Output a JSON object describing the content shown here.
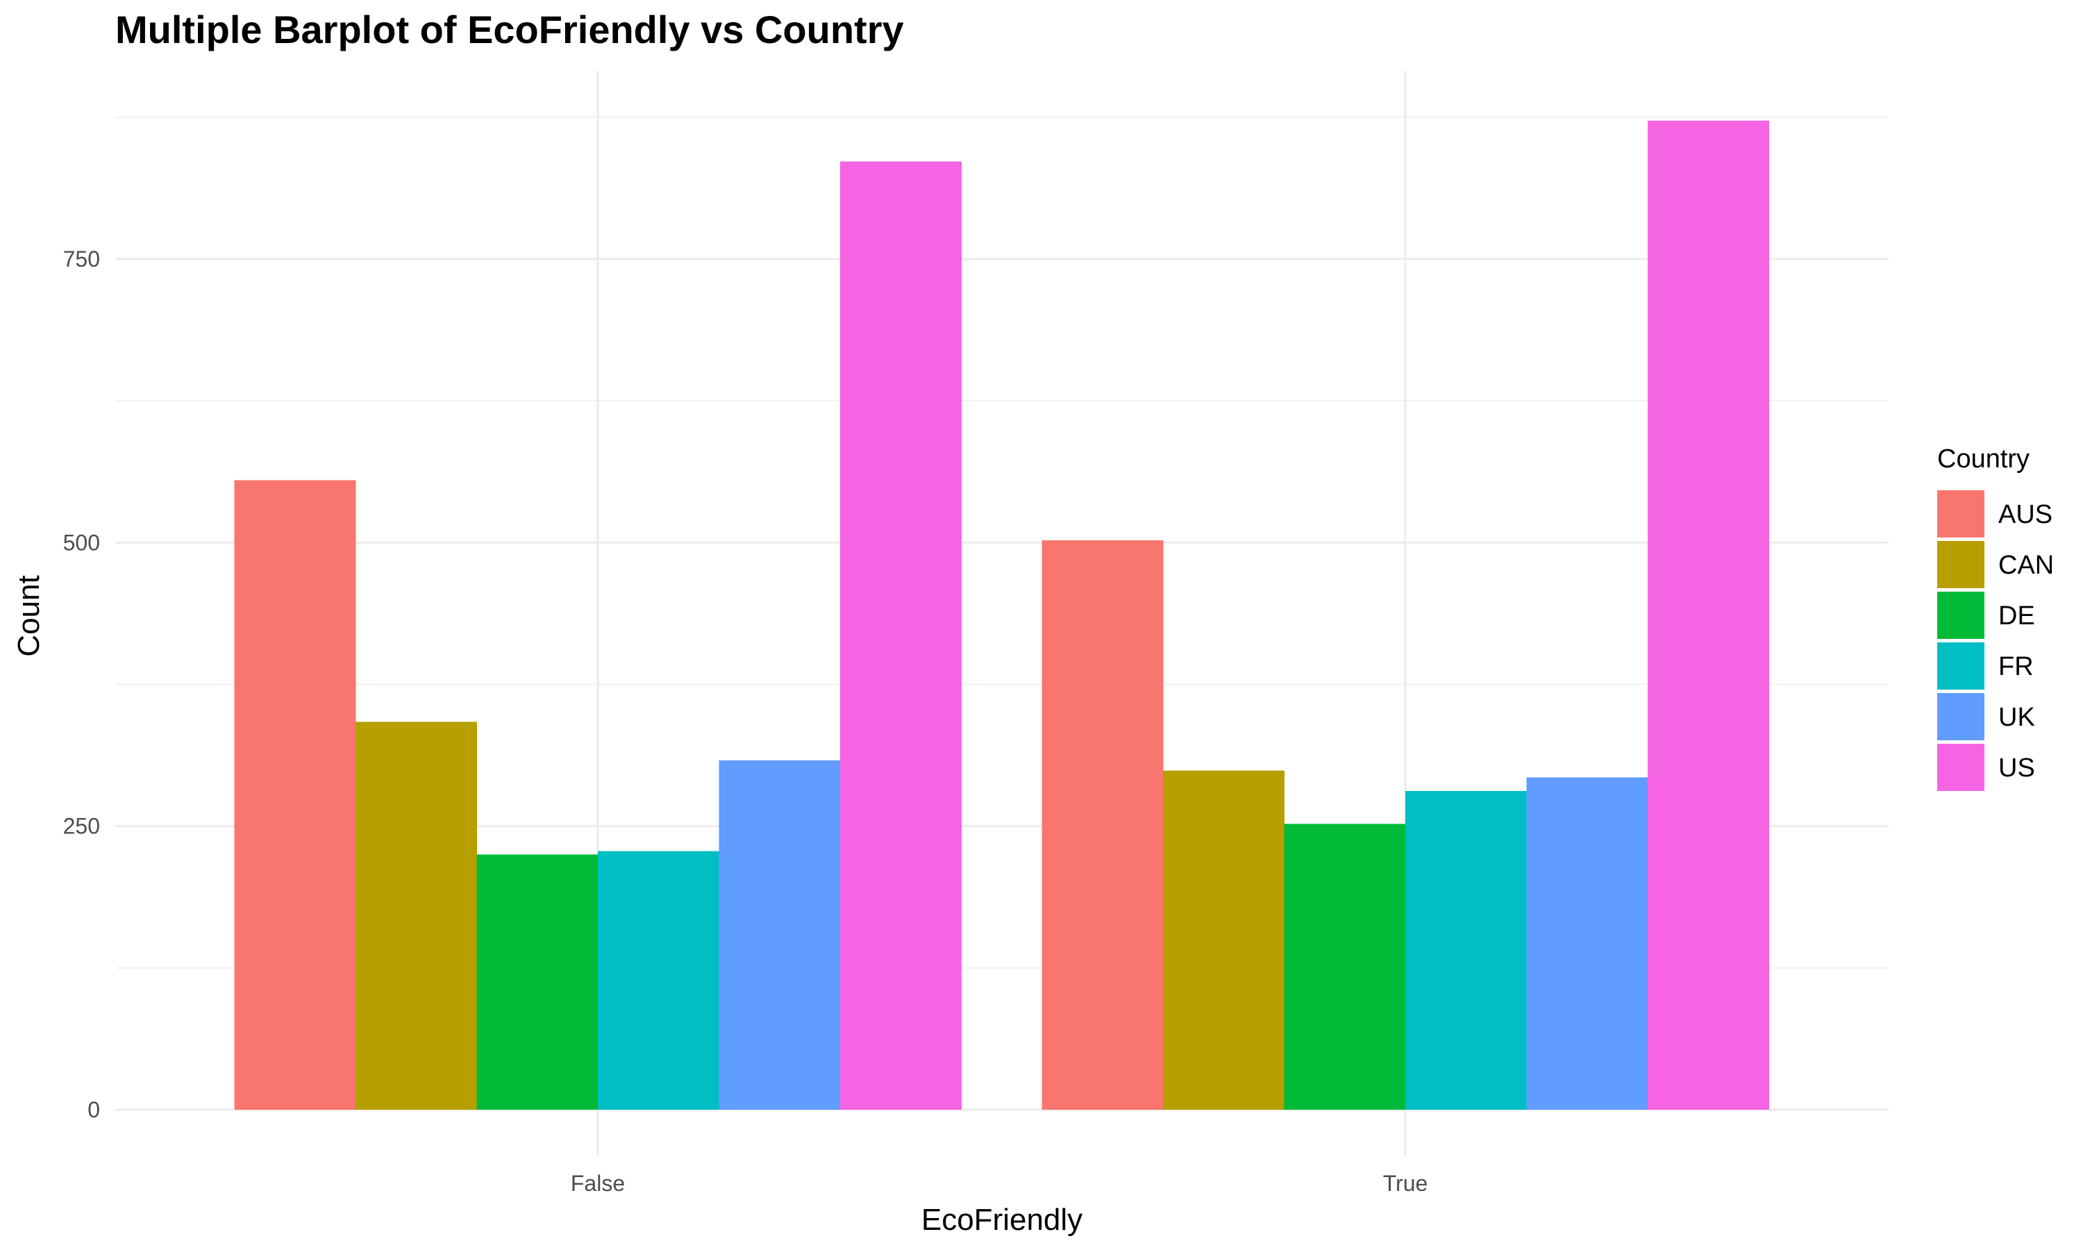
{
  "chart_data": {
    "type": "bar",
    "title": "Multiple Barplot of EcoFriendly vs Country",
    "xlabel": "EcoFriendly",
    "ylabel": "Count",
    "categories": [
      "False",
      "True"
    ],
    "ylim": [
      0,
      880
    ],
    "yticks": [
      0,
      250,
      500,
      750
    ],
    "grid": true,
    "legend": {
      "title": "Country",
      "position": "right"
    },
    "series": [
      {
        "name": "AUS",
        "color": "#F8766D",
        "values": [
          555,
          502
        ]
      },
      {
        "name": "CAN",
        "color": "#B79F00",
        "values": [
          342,
          299
        ]
      },
      {
        "name": "DE",
        "color": "#00BA38",
        "values": [
          225,
          252
        ]
      },
      {
        "name": "FR",
        "color": "#00BFC4",
        "values": [
          228,
          281
        ]
      },
      {
        "name": "UK",
        "color": "#619CFF",
        "values": [
          308,
          293
        ]
      },
      {
        "name": "US",
        "color": "#F564E3",
        "values": [
          836,
          872
        ]
      }
    ]
  }
}
